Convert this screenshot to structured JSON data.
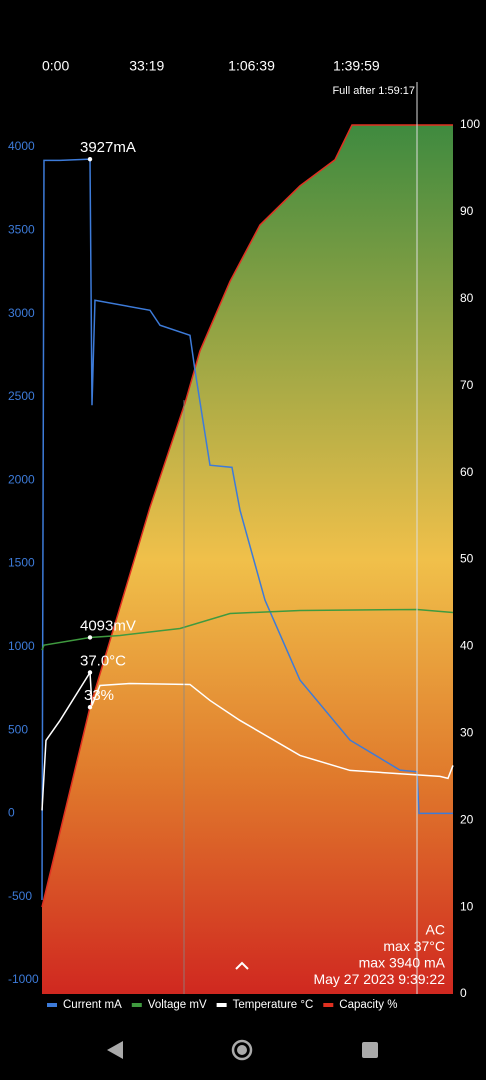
{
  "chart_data": {
    "type": "line",
    "x_label_format": "time",
    "xlim": [
      0,
      7844
    ],
    "xticks": [
      {
        "value": 0,
        "label": "0:00"
      },
      {
        "value": 1999,
        "label": "33:19"
      },
      {
        "value": 3999,
        "label": "1:06:39"
      },
      {
        "value": 5999,
        "label": "1:39:59"
      }
    ],
    "ylim": [
      -1000,
      4000
    ],
    "yticks": [
      -1000,
      -500,
      0,
      500,
      1000,
      1500,
      2000,
      2500,
      3000,
      3500,
      4000
    ],
    "y2lim": [
      0,
      100
    ],
    "y2ticks": [
      0,
      10,
      20,
      30,
      40,
      50,
      60,
      70,
      80,
      90,
      100
    ],
    "series": [
      {
        "name": "Current mA",
        "color": "#3d7bd9",
        "x": [
          0,
          38,
          344,
          916,
          954,
          1011,
          2061,
          2252,
          2824,
          2920,
          3206,
          3626,
          3779,
          4256,
          4924,
          5878,
          6832,
          7157,
          7195,
          7844
        ],
        "values": [
          -520,
          3920,
          3920,
          3927,
          2450,
          3080,
          3020,
          2930,
          2870,
          2660,
          2090,
          2077,
          1820,
          1280,
          800,
          440,
          260,
          250,
          0,
          0
        ]
      },
      {
        "name": "Voltage mV",
        "color": "#3f9a3f",
        "x": [
          0,
          38,
          916,
          1488,
          2634,
          3588,
          4924,
          7157,
          7844
        ],
        "values": [
          980,
          1010,
          1056,
          1068,
          1110,
          1200,
          1218,
          1224,
          1206
        ]
      },
      {
        "name": "Temperature °C",
        "color": "#ffffff",
        "x": [
          0,
          76,
          344,
          916,
          954,
          1107,
          1679,
          2824,
          3206,
          3779,
          4924,
          5878,
          7595,
          7748,
          7844
        ],
        "values": [
          18,
          438,
          558,
          846,
          648,
          768,
          780,
          774,
          678,
          558,
          348,
          258,
          222,
          210,
          288
        ]
      },
      {
        "name": "Capacity %",
        "color": "#e03020",
        "axis": "y2",
        "x": [
          0,
          916,
          2061,
          2729,
          3015,
          3588,
          4160,
          4924,
          5592,
          5916,
          7844
        ],
        "values": [
          10,
          33,
          56,
          68,
          74,
          82,
          88.5,
          93,
          96,
          100,
          100
        ]
      }
    ],
    "annotations": [
      {
        "text": "3927mA",
        "x": 916,
        "y": 3927
      },
      {
        "text": "4093mV",
        "x": 916,
        "y": 1056
      },
      {
        "text": "37.0°C",
        "x": 916,
        "y": 846
      },
      {
        "text": "33%",
        "x": 916,
        "y": 33,
        "axis": "y2"
      }
    ],
    "marker": {
      "text": "Full after 1:59:17",
      "x": 7157
    },
    "status": [
      "AC",
      "max 37°C",
      "max 3940 mA",
      "May 27 2023 9:39:22"
    ]
  }
}
